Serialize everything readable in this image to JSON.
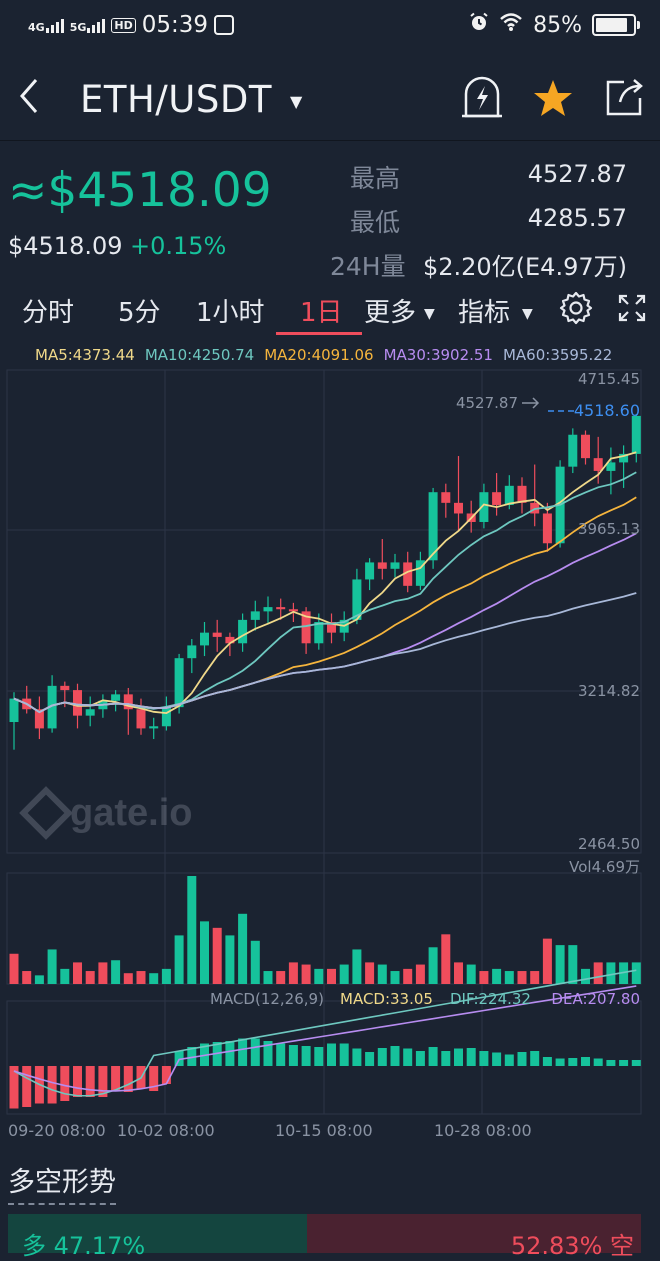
{
  "status_bar": {
    "net1": "4G",
    "net2": "5G",
    "hd": "HD",
    "time": "05:39",
    "battery": "85%"
  },
  "nav": {
    "pair": "ETH/USDT",
    "icons": [
      "back-icon",
      "price-alert-icon",
      "favorite-star-icon",
      "share-icon"
    ]
  },
  "price": {
    "approx_price": "≈$4518.09",
    "price": "$4518.09",
    "change": "+0.15%",
    "high_label": "最高",
    "high_value": "4527.87",
    "low_label": "最低",
    "low_value": "4285.57",
    "volume_label": "24H量",
    "volume_value": "$2.20亿(E4.97万)"
  },
  "tabs": {
    "items": [
      "分时",
      "5分",
      "1小时",
      "1日",
      "更多",
      "指标"
    ],
    "active": "1日"
  },
  "ma": {
    "ma5": "MA5:4373.44",
    "ma10": "MA10:4250.74",
    "ma20": "MA20:4091.06",
    "ma30": "MA30:3902.51",
    "ma60": "MA60:3595.22"
  },
  "colors": {
    "up": "#16c29b",
    "down": "#ef4d5c",
    "ma5": "#f0d98a",
    "ma10": "#6ec8c0",
    "ma20": "#f6b53d",
    "ma30": "#b78cf0",
    "ma60": "#a8b8d8",
    "current_price": "#3d8ef0"
  },
  "chart": {
    "axis": [
      "4715.45",
      "3965.13",
      "3214.82",
      "2464.50"
    ],
    "max_marker": "4527.87",
    "current_price": "4518.60",
    "volume_label": "Vol4.69万",
    "macd_labels": {
      "params": "MACD(12,26,9)",
      "macd": "MACD:33.05",
      "dif": "DIF:224.32",
      "dea": "DEA:207.80"
    },
    "dates": [
      "09-20 08:00",
      "10-02 08:00",
      "10-15 08:00",
      "10-28 08:00"
    ],
    "watermark": "gate.io"
  },
  "chart_data": {
    "type": "candlestick",
    "ylim": [
      2464.5,
      4715.45
    ],
    "candles": [
      [
        3080,
        3190,
        2950,
        3220
      ],
      [
        3190,
        3140,
        3120,
        3250
      ],
      [
        3140,
        3050,
        3000,
        3200
      ],
      [
        3050,
        3250,
        3030,
        3300
      ],
      [
        3250,
        3230,
        3150,
        3270
      ],
      [
        3230,
        3110,
        3050,
        3260
      ],
      [
        3110,
        3140,
        3060,
        3200
      ],
      [
        3140,
        3180,
        3100,
        3210
      ],
      [
        3180,
        3210,
        3130,
        3230
      ],
      [
        3210,
        3140,
        3020,
        3240
      ],
      [
        3140,
        3050,
        3020,
        3190
      ],
      [
        3050,
        3060,
        3000,
        3100
      ],
      [
        3060,
        3150,
        3040,
        3200
      ],
      [
        3150,
        3380,
        3120,
        3400
      ],
      [
        3380,
        3440,
        3310,
        3470
      ],
      [
        3440,
        3500,
        3390,
        3550
      ],
      [
        3500,
        3480,
        3410,
        3560
      ],
      [
        3480,
        3450,
        3390,
        3500
      ],
      [
        3450,
        3560,
        3410,
        3590
      ],
      [
        3560,
        3600,
        3510,
        3650
      ],
      [
        3600,
        3620,
        3540,
        3670
      ],
      [
        3620,
        3610,
        3560,
        3660
      ],
      [
        3610,
        3600,
        3550,
        3640
      ],
      [
        3600,
        3450,
        3400,
        3620
      ],
      [
        3450,
        3550,
        3420,
        3590
      ],
      [
        3550,
        3500,
        3450,
        3590
      ],
      [
        3500,
        3560,
        3460,
        3600
      ],
      [
        3560,
        3750,
        3540,
        3800
      ],
      [
        3750,
        3830,
        3700,
        3850
      ],
      [
        3830,
        3800,
        3750,
        3940
      ],
      [
        3800,
        3830,
        3760,
        3870
      ],
      [
        3830,
        3720,
        3690,
        3880
      ],
      [
        3720,
        3840,
        3700,
        3880
      ],
      [
        3840,
        4160,
        3800,
        4180
      ],
      [
        4160,
        4110,
        4040,
        4200
      ],
      [
        4110,
        4060,
        3980,
        4330
      ],
      [
        4060,
        4020,
        3970,
        4120
      ],
      [
        4020,
        4160,
        3990,
        4200
      ],
      [
        4160,
        4100,
        4050,
        4250
      ],
      [
        4100,
        4190,
        4080,
        4240
      ],
      [
        4190,
        4110,
        4060,
        4230
      ],
      [
        4110,
        4060,
        4000,
        4290
      ],
      [
        4060,
        3920,
        3880,
        4110
      ],
      [
        3920,
        4280,
        3900,
        4310
      ],
      [
        4280,
        4430,
        4250,
        4460
      ],
      [
        4430,
        4320,
        4290,
        4450
      ],
      [
        4320,
        4260,
        4200,
        4420
      ],
      [
        4260,
        4300,
        4150,
        4370
      ],
      [
        4300,
        4340,
        4180,
        4380
      ],
      [
        4340,
        4518.6,
        4300,
        4527.87
      ]
    ],
    "volume": [
      [
        0.28,
        0
      ],
      [
        0.12,
        0
      ],
      [
        0.08,
        1
      ],
      [
        0.32,
        1
      ],
      [
        0.14,
        1
      ],
      [
        0.2,
        0
      ],
      [
        0.12,
        0
      ],
      [
        0.2,
        0
      ],
      [
        0.22,
        1
      ],
      [
        0.1,
        0
      ],
      [
        0.12,
        0
      ],
      [
        0.1,
        1
      ],
      [
        0.14,
        1
      ],
      [
        0.45,
        1
      ],
      [
        1.0,
        1
      ],
      [
        0.58,
        1
      ],
      [
        0.52,
        0
      ],
      [
        0.45,
        1
      ],
      [
        0.65,
        1
      ],
      [
        0.4,
        1
      ],
      [
        0.12,
        1
      ],
      [
        0.12,
        0
      ],
      [
        0.2,
        0
      ],
      [
        0.18,
        0
      ],
      [
        0.14,
        1
      ],
      [
        0.14,
        0
      ],
      [
        0.18,
        1
      ],
      [
        0.32,
        1
      ],
      [
        0.2,
        0
      ],
      [
        0.18,
        1
      ],
      [
        0.12,
        1
      ],
      [
        0.14,
        0
      ],
      [
        0.18,
        0
      ],
      [
        0.34,
        1
      ],
      [
        0.46,
        0
      ],
      [
        0.2,
        0
      ],
      [
        0.18,
        1
      ],
      [
        0.12,
        0
      ],
      [
        0.14,
        1
      ],
      [
        0.12,
        1
      ],
      [
        0.12,
        0
      ],
      [
        0.12,
        0
      ],
      [
        0.42,
        0
      ],
      [
        0.36,
        1
      ],
      [
        0.36,
        1
      ],
      [
        0.14,
        1
      ],
      [
        0.2,
        0
      ],
      [
        0.2,
        1
      ],
      [
        0.2,
        1
      ],
      [
        0.2,
        1
      ]
    ],
    "macd_hist": [
      -0.85,
      -0.82,
      -0.75,
      -0.75,
      -0.7,
      -0.62,
      -0.62,
      -0.62,
      -0.5,
      -0.52,
      -0.45,
      -0.5,
      -0.36,
      0.3,
      0.38,
      0.45,
      0.48,
      0.5,
      0.55,
      0.55,
      0.5,
      0.45,
      0.42,
      0.4,
      0.38,
      0.45,
      0.45,
      0.35,
      0.28,
      0.36,
      0.4,
      0.35,
      0.3,
      0.38,
      0.3,
      0.35,
      0.36,
      0.3,
      0.27,
      0.23,
      0.28,
      0.3,
      0.18,
      0.15,
      0.16,
      0.18,
      0.15,
      0.12,
      0.12,
      0.12
    ],
    "dates": [
      "09-20 08:00",
      "10-02 08:00",
      "10-15 08:00",
      "10-28 08:00"
    ]
  },
  "sentiment": {
    "title": "多空形势",
    "bull": "多 47.17%",
    "bear": "52.83% 空"
  }
}
